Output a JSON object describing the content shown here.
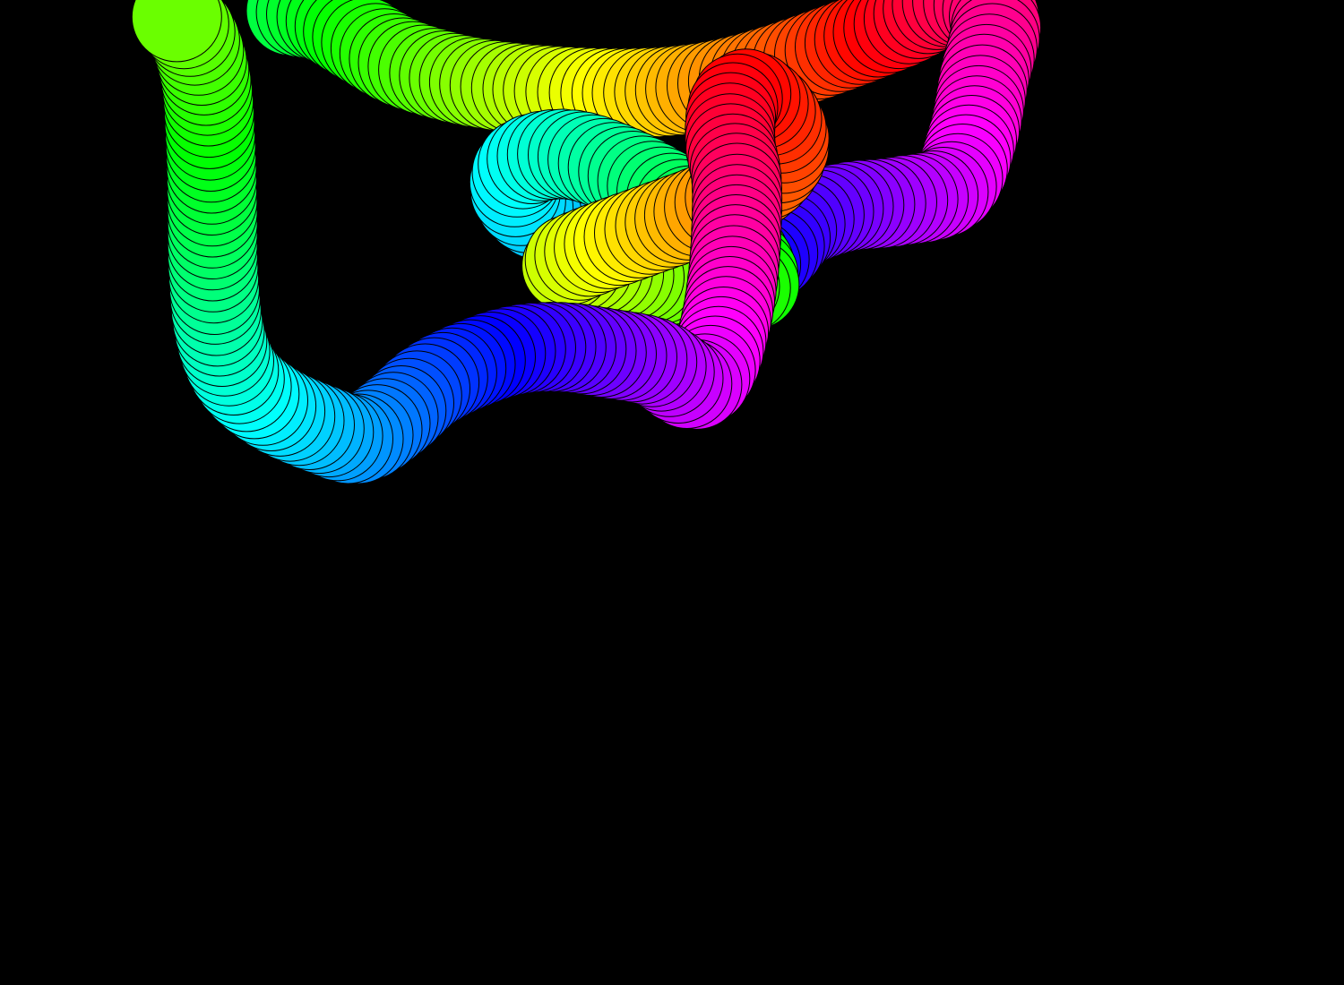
{
  "scene": {
    "background_color": "#000000",
    "outline_color": "#000000",
    "subject": "rainbow-bead-tube",
    "shape": "knotted-loop",
    "text": []
  }
}
